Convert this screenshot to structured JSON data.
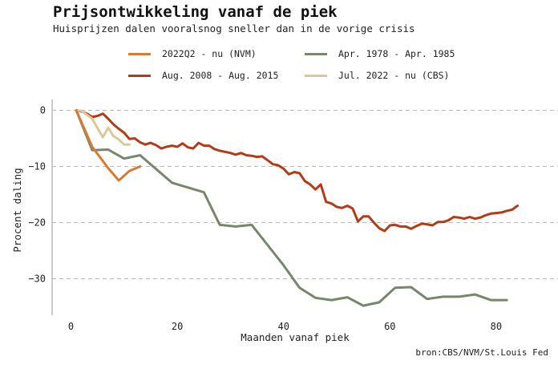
{
  "title": "Prijsontwikkeling vanaf de piek",
  "subtitle": "Huisprijzen dalen vooralsnog sneller dan in de vorige crisis",
  "source": "bron:CBS/NVM/St.Louis Fed",
  "chart_data": {
    "type": "line",
    "xlabel": "Maanden vanaf piek",
    "ylabel": "Procent daling",
    "xlim": [
      -4,
      86
    ],
    "ylim": [
      -37,
      1
    ],
    "xticks": [
      0,
      20,
      40,
      60,
      80
    ],
    "yticks": [
      0,
      -10,
      -20,
      -30
    ],
    "grid": "horizontal dashed",
    "legend_position": "top",
    "series": [
      {
        "name": "2022Q2 - nu (NVM)",
        "color": "#d97a33",
        "x": [
          1,
          4,
          7,
          9,
          11,
          13
        ],
        "y": [
          0,
          -6.5,
          -10.3,
          -12.5,
          -10.8,
          -10
        ]
      },
      {
        "name": "Aug. 2008 - Aug. 2015",
        "color": "#b23c17",
        "x": [
          1,
          2,
          3,
          4,
          5,
          6,
          7,
          8,
          9,
          10,
          11,
          12,
          13,
          14,
          15,
          16,
          17,
          18,
          19,
          20,
          21,
          22,
          23,
          24,
          25,
          26,
          27,
          28,
          29,
          30,
          31,
          32,
          33,
          34,
          35,
          36,
          37,
          38,
          39,
          40,
          41,
          42,
          43,
          44,
          45,
          46,
          47,
          48,
          49,
          50,
          51,
          52,
          53,
          54,
          55,
          56,
          57,
          58,
          59,
          60,
          61,
          62,
          63,
          64,
          65,
          66,
          67,
          68,
          69,
          70,
          71,
          72,
          73,
          74,
          75,
          76,
          77,
          78,
          79,
          80,
          81,
          82,
          83,
          84
        ],
        "y": [
          0,
          -0.2,
          -0.6,
          -1.2,
          -1.0,
          -0.6,
          -1.5,
          -2.5,
          -3.3,
          -4,
          -5.1,
          -5,
          -5.7,
          -6.1,
          -5.8,
          -6.2,
          -6.8,
          -6.5,
          -6.3,
          -6.5,
          -5.9,
          -6.6,
          -6.8,
          -5.8,
          -6.3,
          -6.3,
          -6.9,
          -7.2,
          -7.4,
          -7.6,
          -7.9,
          -7.6,
          -8.0,
          -8.1,
          -8.3,
          -8.2,
          -8.9,
          -9.6,
          -9.8,
          -10.4,
          -11.4,
          -11.0,
          -11.2,
          -12.6,
          -13.2,
          -14.1,
          -13.2,
          -16.3,
          -16.6,
          -17.2,
          -17.4,
          -17.0,
          -17.5,
          -19.8,
          -18.9,
          -18.9,
          -20.0,
          -21.0,
          -21.5,
          -20.5,
          -20.4,
          -20.7,
          -20.7,
          -21.1,
          -20.6,
          -20.2,
          -20.3,
          -20.5,
          -19.9,
          -19.9,
          -19.6,
          -19.0,
          -19.1,
          -19.3,
          -19.0,
          -19.3,
          -19.1,
          -18.7,
          -18.4,
          -18.3,
          -18.2,
          -17.9,
          -17.7,
          -17.0
        ]
      },
      {
        "name": "Apr. 1978 - Apr. 1985",
        "color": "#76876a",
        "x": [
          1,
          4,
          7,
          10,
          13,
          19,
          25,
          28,
          31,
          34,
          37,
          40,
          43,
          46,
          49,
          52,
          55,
          58,
          61,
          64,
          67,
          70,
          73,
          76,
          79,
          82
        ],
        "y": [
          0,
          -7.1,
          -7.0,
          -8.6,
          -8.0,
          -12.9,
          -14.6,
          -20.4,
          -20.7,
          -20.4,
          -24.0,
          -27.6,
          -31.6,
          -33.4,
          -33.8,
          -33.3,
          -34.8,
          -34.2,
          -31.6,
          -31.5,
          -33.6,
          -33.2,
          -33.2,
          -32.8,
          -33.8,
          -33.8
        ]
      },
      {
        "name": "Jul. 2022 - nu (CBS)",
        "color": "#dcc79b",
        "x": [
          1,
          2,
          3,
          4,
          5,
          6,
          7,
          8,
          9,
          10,
          11
        ],
        "y": [
          0,
          -0.1,
          -0.8,
          -1.5,
          -3.2,
          -4.8,
          -3.1,
          -4.6,
          -5.2,
          -6.1,
          -6.1
        ]
      }
    ]
  }
}
